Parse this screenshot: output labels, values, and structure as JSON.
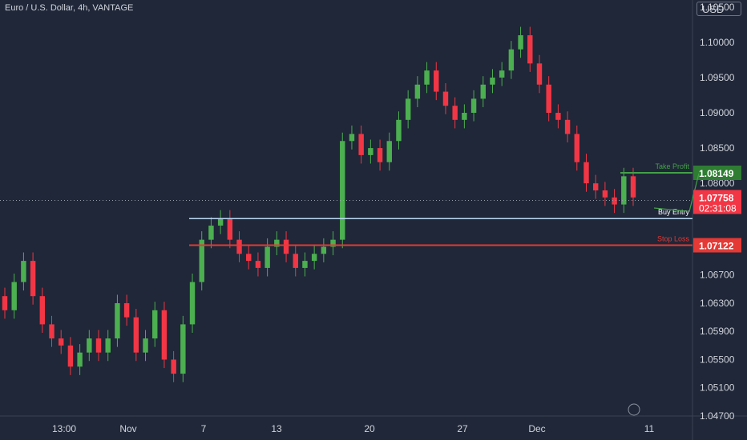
{
  "chart_title": "Euro / U.S. Dollar, 4h, VANTAGE",
  "currency_label": "USD",
  "colors": {
    "background": "#1f2738",
    "up": "#4caf50",
    "down": "#f23645",
    "take_profit": "#43a047",
    "stop_loss": "#e53935",
    "entry": "#bcd9f5",
    "axis_text": "#d1d4dc"
  },
  "chart_data": {
    "type": "candlestick",
    "ylim": [
      1.047,
      1.106
    ],
    "y_ticks": [
      "1.10500",
      "1.10000",
      "1.09500",
      "1.09000",
      "1.08500",
      "1.08000",
      "1.06700",
      "1.06300",
      "1.05900",
      "1.05500",
      "1.05100",
      "1.04700"
    ],
    "x_ticks": [
      "13:00",
      "Nov",
      "7",
      "13",
      "20",
      "27",
      "Dec",
      "11"
    ],
    "last_price": "1.07758",
    "countdown": "02:31:08",
    "levels": [
      {
        "name": "Take Profit",
        "value": 1.08149,
        "label": "1.08149"
      },
      {
        "name": "Buy Entry",
        "value": 1.075,
        "label": ""
      },
      {
        "name": "Stop Loss",
        "value": 1.07122,
        "label": "1.07122"
      }
    ],
    "closes": [
      1.062,
      1.066,
      1.069,
      1.064,
      1.06,
      1.058,
      1.057,
      1.054,
      1.056,
      1.058,
      1.056,
      1.058,
      1.063,
      1.061,
      1.056,
      1.058,
      1.062,
      1.055,
      1.053,
      1.06,
      1.066,
      1.072,
      1.074,
      1.075,
      1.072,
      1.07,
      1.069,
      1.068,
      1.071,
      1.072,
      1.07,
      1.068,
      1.069,
      1.07,
      1.071,
      1.072,
      1.086,
      1.087,
      1.084,
      1.085,
      1.083,
      1.086,
      1.089,
      1.092,
      1.094,
      1.096,
      1.093,
      1.091,
      1.089,
      1.09,
      1.092,
      1.094,
      1.095,
      1.096,
      1.099,
      1.101,
      1.097,
      1.094,
      1.09,
      1.089,
      1.087,
      1.083,
      1.08,
      1.079,
      1.078,
      1.077,
      1.081,
      1.078
    ]
  }
}
